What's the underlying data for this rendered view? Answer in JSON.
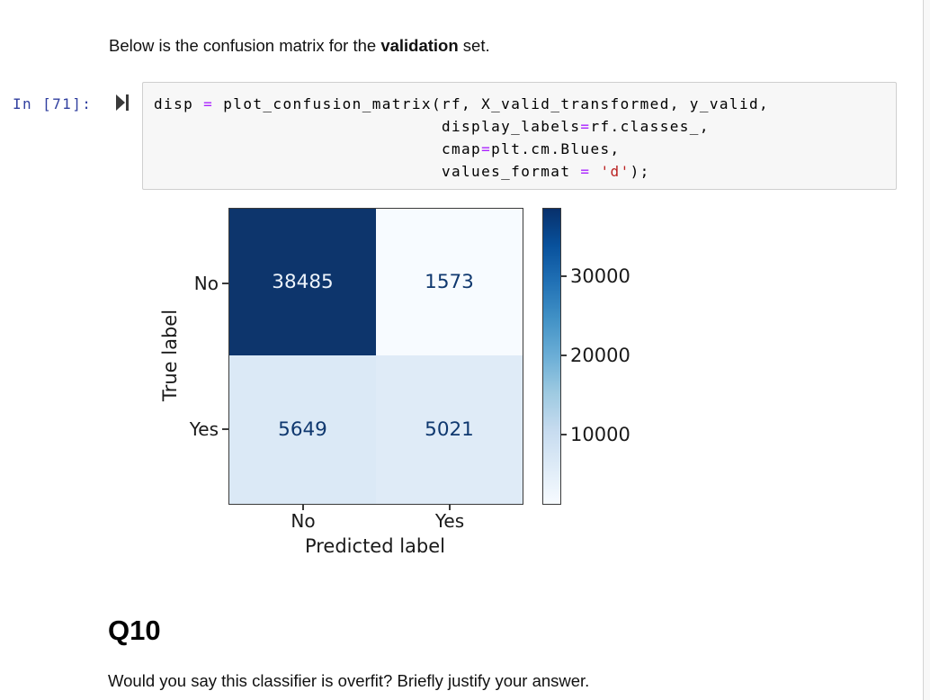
{
  "intro": {
    "before": "Below is the confusion matrix for the ",
    "bold": "validation",
    "after": " set."
  },
  "code_cell": {
    "prompt": "In [71]:",
    "collapse_icon": "play-to-bar",
    "lines": [
      [
        {
          "t": "disp "
        },
        {
          "t": "=",
          "c": "op"
        },
        {
          "t": " plot_confusion_matrix(rf, X_valid_transformed, y_valid,"
        }
      ],
      [
        {
          "t": "                             display_labels"
        },
        {
          "t": "=",
          "c": "op"
        },
        {
          "t": "rf.classes_,"
        }
      ],
      [
        {
          "t": "                             cmap"
        },
        {
          "t": "=",
          "c": "op"
        },
        {
          "t": "plt.cm.Blues,"
        }
      ],
      [
        {
          "t": "                             values_format "
        },
        {
          "t": "=",
          "c": "op"
        },
        {
          "t": " "
        },
        {
          "t": "'d'",
          "c": "str"
        },
        {
          "t": ");"
        }
      ]
    ]
  },
  "figure": {
    "ylabel": "True label",
    "xlabel": "Predicted label",
    "row_labels": [
      "No",
      "Yes"
    ],
    "col_labels": [
      "No",
      "Yes"
    ],
    "cells": [
      [
        "38485",
        "1573"
      ],
      [
        "5649",
        "5021"
      ]
    ],
    "cell_bg": [
      [
        "#0d356c",
        "#f7fbff"
      ],
      [
        "#dbe9f6",
        "#dfebf7"
      ]
    ],
    "cell_fg": [
      [
        "#edf4fb",
        "#0f386f"
      ],
      [
        "#0f386f",
        "#0f386f"
      ]
    ],
    "colorbar_ticks": [
      "30000",
      "20000",
      "10000"
    ]
  },
  "q10": {
    "heading": "Q10",
    "question": "Would you say this classifier is overfit? Briefly justify your answer."
  },
  "colors": {
    "prompt_blue": "#303F9F",
    "operator_purple": "#AA22FF",
    "string_red": "#BA2121",
    "cmap_dark": "#08306b",
    "cmap_light": "#f7fbff",
    "code_bg": "#f7f7f7",
    "code_border": "#cfcfcf"
  },
  "chart_data": {
    "type": "heatmap",
    "title": "",
    "xlabel": "Predicted label",
    "ylabel": "True label",
    "x_categories": [
      "No",
      "Yes"
    ],
    "y_categories": [
      "No",
      "Yes"
    ],
    "values": [
      [
        38485,
        1573
      ],
      [
        5649,
        5021
      ]
    ],
    "colormap": "Blues",
    "values_format": "d",
    "colorbar": {
      "ticks": [
        30000,
        20000,
        10000
      ],
      "vmin": 1573,
      "vmax": 38485,
      "position": "right"
    },
    "legend": "none",
    "grid": false
  }
}
